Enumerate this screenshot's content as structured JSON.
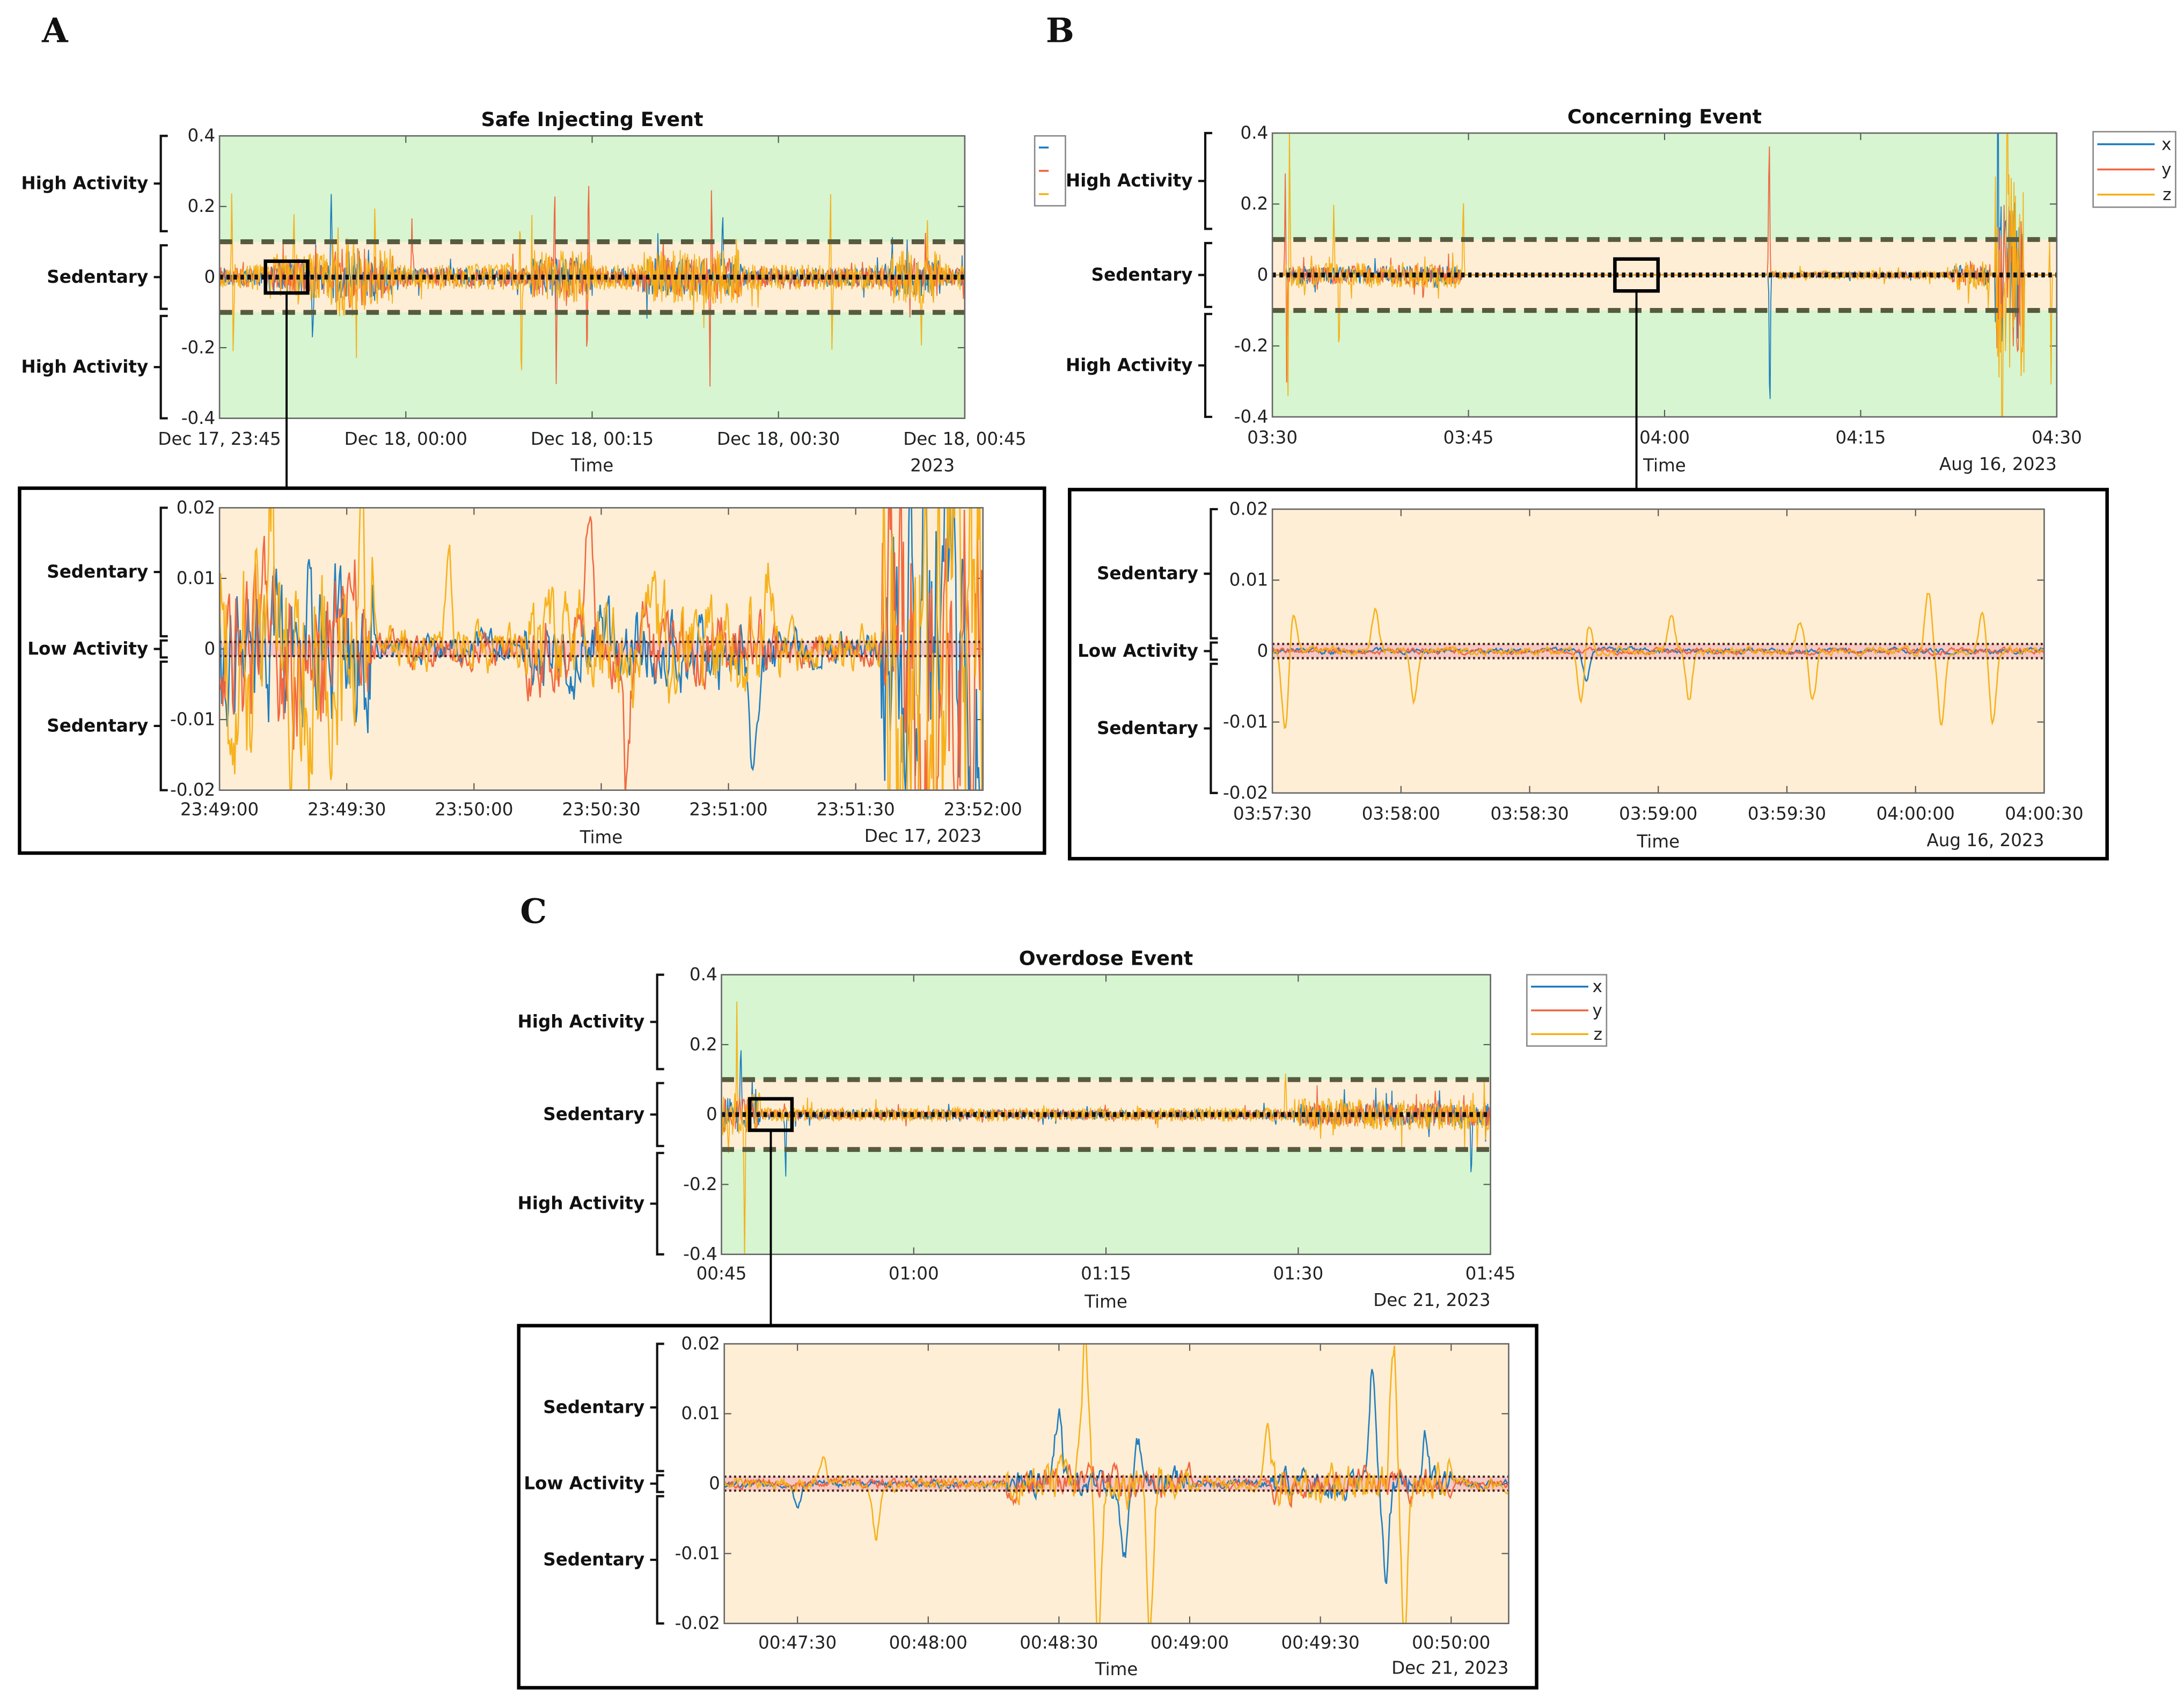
{
  "panel_labels": [
    "A",
    "B",
    "C"
  ],
  "colors": {
    "x": "#1477BE",
    "y": "#F0603A",
    "z": "#F7AE12",
    "high_activity_bg": "#D6F5D0",
    "sedentary_bg": "#FDEED5",
    "low_activity_band": "#F6C9C4",
    "threshold": "#575A3E"
  },
  "chart_data": [
    {
      "id": "A-main",
      "type": "line",
      "title": "Safe Injecting Event",
      "xlabel": "Time",
      "date_label": "2023",
      "xlim": [
        0,
        60
      ],
      "xticks": [
        0,
        15,
        30,
        45,
        60
      ],
      "xtick_labels": [
        "Dec 17, 23:45",
        "Dec 18, 00:00",
        "Dec 18, 00:15",
        "Dec 18, 00:30",
        "Dec 18, 00:45"
      ],
      "ylim": [
        -0.4,
        0.4
      ],
      "yticks": [
        0.4,
        0.2,
        0,
        -0.2,
        -0.4
      ],
      "ytick_labels": [
        "0.4",
        "0.2",
        "0",
        "-0.2",
        "-0.4"
      ],
      "legend": {
        "entries": [],
        "partial": true
      },
      "zones": [
        {
          "label": "High Activity",
          "range": [
            0.13,
            0.4
          ]
        },
        {
          "label": "Sedentary",
          "range": [
            -0.09,
            0.09
          ]
        },
        {
          "label": "High Activity",
          "range": [
            -0.4,
            -0.11
          ]
        }
      ],
      "thresholds": {
        "dashed": [
          -0.1,
          0.1
        ],
        "dotted": [
          0
        ]
      },
      "zoom_window": {
        "x": [
          3.7,
          7.1
        ],
        "y": [
          -0.045,
          0.045
        ]
      },
      "signal": {
        "noise": 0.012,
        "seed": 11,
        "bursts": [
          [
            0,
            60,
            0.025
          ],
          [
            4,
            12,
            0.03
          ],
          [
            9,
            14,
            0.045
          ],
          [
            25,
            30,
            0.04
          ],
          [
            34,
            42,
            0.04
          ],
          [
            54,
            58,
            0.04
          ]
        ],
        "spikes": [
          [
            1,
            0.25,
            2
          ],
          [
            1.1,
            -0.25,
            2
          ],
          [
            6,
            0.13,
            2
          ],
          [
            7.5,
            -0.2,
            0
          ],
          [
            9,
            0.3,
            0
          ],
          [
            10.5,
            -0.2,
            1
          ],
          [
            12.5,
            0.19,
            2
          ],
          [
            15.5,
            0.15,
            1
          ],
          [
            24.2,
            0.17,
            2
          ],
          [
            24.3,
            -0.35,
            2
          ],
          [
            27,
            0.28,
            1
          ],
          [
            27.1,
            -0.28,
            1
          ],
          [
            29.7,
            0.25,
            1
          ],
          [
            29.6,
            -0.21,
            1
          ],
          [
            39.6,
            0.21,
            1
          ],
          [
            39.5,
            -0.29,
            1
          ],
          [
            40.5,
            0.2,
            0
          ],
          [
            49.2,
            0.24,
            2
          ],
          [
            49.3,
            -0.23,
            2
          ],
          [
            57,
            0.22,
            2
          ],
          [
            56.5,
            -0.2,
            2
          ]
        ]
      }
    },
    {
      "id": "A-inset",
      "type": "line",
      "title": "",
      "xlabel": "Time",
      "date_label": "Dec 17, 2023",
      "xlim": [
        4,
        7
      ],
      "xticks": [
        4,
        4.5,
        5,
        5.5,
        6,
        6.5,
        7
      ],
      "xtick_labels": [
        "23:49:00",
        "23:49:30",
        "23:50:00",
        "23:50:30",
        "23:51:00",
        "23:51:30",
        "23:52:00"
      ],
      "ylim": [
        -0.02,
        0.02
      ],
      "yticks": [
        0.02,
        0.01,
        0,
        -0.01,
        -0.02
      ],
      "ytick_labels": [
        "0.02",
        "0.01",
        "0",
        "-0.01",
        "-0.02"
      ],
      "zones": [
        {
          "label": "Sedentary",
          "range": [
            0.0018,
            0.02
          ]
        },
        {
          "label": "Low Activity",
          "range": [
            -0.0012,
            0.0012
          ]
        },
        {
          "label": "Sedentary",
          "range": [
            -0.02,
            -0.0018
          ]
        }
      ],
      "thresholds": {
        "dotted": [
          -0.001,
          0.001
        ]
      },
      "signal": {
        "noise": 0.003,
        "seed": 21,
        "smooth": true,
        "bursts": [
          [
            4,
            4.6,
            0.012
          ],
          [
            6.6,
            7,
            0.03
          ],
          [
            5.2,
            6.2,
            0.004
          ]
        ],
        "spikes": [
          [
            4.2,
            0.02,
            2
          ],
          [
            4.35,
            -0.02,
            2
          ],
          [
            4.9,
            0.015,
            2
          ],
          [
            5.45,
            0.02,
            1
          ],
          [
            5.6,
            -0.02,
            1
          ],
          [
            6.1,
            -0.018,
            0
          ],
          [
            6.15,
            0.014,
            2
          ]
        ]
      }
    },
    {
      "id": "B-main",
      "type": "line",
      "title": "Concerning Event",
      "xlabel": "Time",
      "date_label": "Aug 16, 2023",
      "xlim": [
        0,
        60
      ],
      "xticks": [
        0,
        15,
        30,
        45,
        60
      ],
      "xtick_labels": [
        "03:30",
        "03:45",
        "04:00",
        "04:15",
        "04:30"
      ],
      "ylim": [
        -0.4,
        0.4
      ],
      "yticks": [
        0.4,
        0.2,
        0,
        -0.2,
        -0.4
      ],
      "ytick_labels": [
        "0.4",
        "0.2",
        "0",
        "-0.2",
        "-0.4"
      ],
      "legend": {
        "entries": [
          "x",
          "y",
          "z"
        ],
        "partial": false
      },
      "zones": [
        {
          "label": "High Activity",
          "range": [
            0.13,
            0.4
          ]
        },
        {
          "label": "Sedentary",
          "range": [
            -0.09,
            0.09
          ]
        },
        {
          "label": "High Activity",
          "range": [
            -0.4,
            -0.11
          ]
        }
      ],
      "thresholds": {
        "dashed": [
          -0.1,
          0.1
        ],
        "dotted": [
          0
        ]
      },
      "zoom_window": {
        "x": [
          26.2,
          29.5
        ],
        "y": [
          -0.045,
          0.045
        ]
      },
      "signal": {
        "noise": 0.002,
        "seed": 31,
        "bursts": [
          [
            1,
            14.5,
            0.035
          ],
          [
            38,
            52,
            0.01
          ],
          [
            52,
            55,
            0.04
          ],
          [
            55.3,
            57.5,
            0.3
          ]
        ],
        "spikes": [
          [
            1.2,
            -0.4,
            2
          ],
          [
            1.3,
            0.4,
            2
          ],
          [
            1,
            0.32,
            1
          ],
          [
            1.1,
            -0.33,
            1
          ],
          [
            4.7,
            0.18,
            2
          ],
          [
            5.1,
            -0.24,
            2
          ],
          [
            14.6,
            0.22,
            2
          ],
          [
            38,
            0.4,
            1
          ],
          [
            38.05,
            -0.4,
            0
          ],
          [
            55.5,
            0.4,
            0
          ],
          [
            55.8,
            -0.4,
            2
          ],
          [
            56.2,
            0.4,
            2
          ],
          [
            59.5,
            0.22,
            2
          ],
          [
            59.55,
            -0.4,
            2
          ]
        ]
      }
    },
    {
      "id": "B-inset",
      "type": "line",
      "title": "",
      "xlabel": "Time",
      "date_label": "Aug 16, 2023",
      "xlim": [
        27.5,
        30.5
      ],
      "xticks": [
        27.5,
        28,
        28.5,
        29,
        29.5,
        30,
        30.5
      ],
      "xtick_labels": [
        "03:57:30",
        "03:58:00",
        "03:58:30",
        "03:59:00",
        "03:59:30",
        "04:00:00",
        "04:00:30"
      ],
      "ylim": [
        -0.02,
        0.02
      ],
      "yticks": [
        0.02,
        0.01,
        0,
        -0.01,
        -0.02
      ],
      "ytick_labels": [
        "0.02",
        "0.01",
        "0",
        "-0.01",
        "-0.02"
      ],
      "zones": [
        {
          "label": "Sedentary",
          "range": [
            0.0018,
            0.02
          ]
        },
        {
          "label": "Low Activity",
          "range": [
            -0.0012,
            0.0012
          ]
        },
        {
          "label": "Sedentary",
          "range": [
            -0.02,
            -0.0018
          ]
        }
      ],
      "thresholds": {
        "dotted": [
          -0.001,
          0.001
        ]
      },
      "signal": {
        "noise": 0.0005,
        "seed": 41,
        "smooth": true,
        "bursts": [],
        "spikes": [
          [
            27.55,
            -0.011,
            2
          ],
          [
            27.58,
            0.006,
            2
          ],
          [
            27.9,
            0.006,
            2
          ],
          [
            28.05,
            -0.007,
            2
          ],
          [
            28.7,
            -0.007,
            2
          ],
          [
            28.73,
            0.004,
            2
          ],
          [
            29.05,
            0.005,
            2
          ],
          [
            29.12,
            -0.007,
            2
          ],
          [
            29.6,
            -0.007,
            2
          ],
          [
            29.55,
            0.004,
            2
          ],
          [
            30.05,
            0.008,
            2
          ],
          [
            30.1,
            -0.01,
            2
          ],
          [
            30.3,
            -0.01,
            2
          ],
          [
            30.26,
            0.006,
            2
          ],
          [
            28.72,
            -0.004,
            0
          ]
        ]
      }
    },
    {
      "id": "C-main",
      "type": "line",
      "title": "Overdose Event",
      "xlabel": "Time",
      "date_label": "Dec 21, 2023",
      "xlim": [
        0,
        60
      ],
      "xticks": [
        0,
        15,
        30,
        45,
        60
      ],
      "xtick_labels": [
        "00:45",
        "01:00",
        "01:15",
        "01:30",
        "01:45"
      ],
      "ylim": [
        -0.4,
        0.4
      ],
      "yticks": [
        0.4,
        0.2,
        0,
        -0.2,
        -0.4
      ],
      "ytick_labels": [
        "0.4",
        "0.2",
        "0",
        "-0.2",
        "-0.4"
      ],
      "legend": {
        "entries": [
          "x",
          "y",
          "z"
        ],
        "partial": false
      },
      "zones": [
        {
          "label": "High Activity",
          "range": [
            0.13,
            0.4
          ]
        },
        {
          "label": "Sedentary",
          "range": [
            -0.09,
            0.09
          ]
        },
        {
          "label": "High Activity",
          "range": [
            -0.4,
            -0.11
          ]
        }
      ],
      "thresholds": {
        "dashed": [
          -0.1,
          0.1
        ],
        "dotted": [
          0
        ]
      },
      "zoom_window": {
        "x": [
          2.2,
          5.5
        ],
        "y": [
          -0.045,
          0.045
        ]
      },
      "signal": {
        "noise": 0.008,
        "seed": 51,
        "bursts": [
          [
            0,
            60,
            0.012
          ],
          [
            0,
            3,
            0.05
          ],
          [
            45,
            60,
            0.025
          ]
        ],
        "spikes": [
          [
            1.2,
            0.3,
            2
          ],
          [
            1.8,
            -0.35,
            2
          ],
          [
            1.5,
            0.2,
            0
          ],
          [
            5,
            -0.18,
            0
          ],
          [
            44,
            0.12,
            2
          ],
          [
            58.5,
            -0.18,
            0
          ]
        ]
      }
    },
    {
      "id": "C-inset",
      "type": "line",
      "title": "",
      "xlabel": "Time",
      "date_label": "Dec 21, 2023",
      "xlim": [
        2.22,
        5.22
      ],
      "xticks": [
        2.5,
        3,
        3.5,
        4,
        4.5,
        5
      ],
      "xtick_labels": [
        "00:47:30",
        "00:48:00",
        "00:48:30",
        "00:49:00",
        "00:49:30",
        "00:50:00"
      ],
      "ylim": [
        -0.02,
        0.02
      ],
      "yticks": [
        0.02,
        0.01,
        0,
        -0.01,
        -0.02
      ],
      "ytick_labels": [
        "0.02",
        "0.01",
        "0",
        "-0.01",
        "-0.02"
      ],
      "zones": [
        {
          "label": "Sedentary",
          "range": [
            0.0018,
            0.02
          ]
        },
        {
          "label": "Low Activity",
          "range": [
            -0.0012,
            0.0012
          ]
        },
        {
          "label": "Sedentary",
          "range": [
            -0.02,
            -0.0018
          ]
        }
      ],
      "thresholds": {
        "dotted": [
          -0.001,
          0.001
        ]
      },
      "signal": {
        "noise": 0.0008,
        "seed": 61,
        "smooth": true,
        "bursts": [
          [
            3.3,
            4.0,
            0.002
          ],
          [
            4.3,
            5.0,
            0.002
          ]
        ],
        "spikes": [
          [
            2.6,
            0.004,
            2
          ],
          [
            2.8,
            -0.008,
            2
          ],
          [
            3.5,
            0.01,
            0
          ],
          [
            3.6,
            0.02,
            2
          ],
          [
            3.65,
            -0.02,
            2
          ],
          [
            3.75,
            -0.01,
            0
          ],
          [
            3.8,
            0.006,
            0
          ],
          [
            3.85,
            -0.02,
            2
          ],
          [
            4.3,
            0.008,
            2
          ],
          [
            4.7,
            0.018,
            0
          ],
          [
            4.75,
            -0.012,
            0
          ],
          [
            4.78,
            0.02,
            2
          ],
          [
            4.82,
            -0.02,
            2
          ],
          [
            4.9,
            0.006,
            0
          ],
          [
            2.5,
            -0.003,
            0
          ]
        ]
      }
    }
  ]
}
